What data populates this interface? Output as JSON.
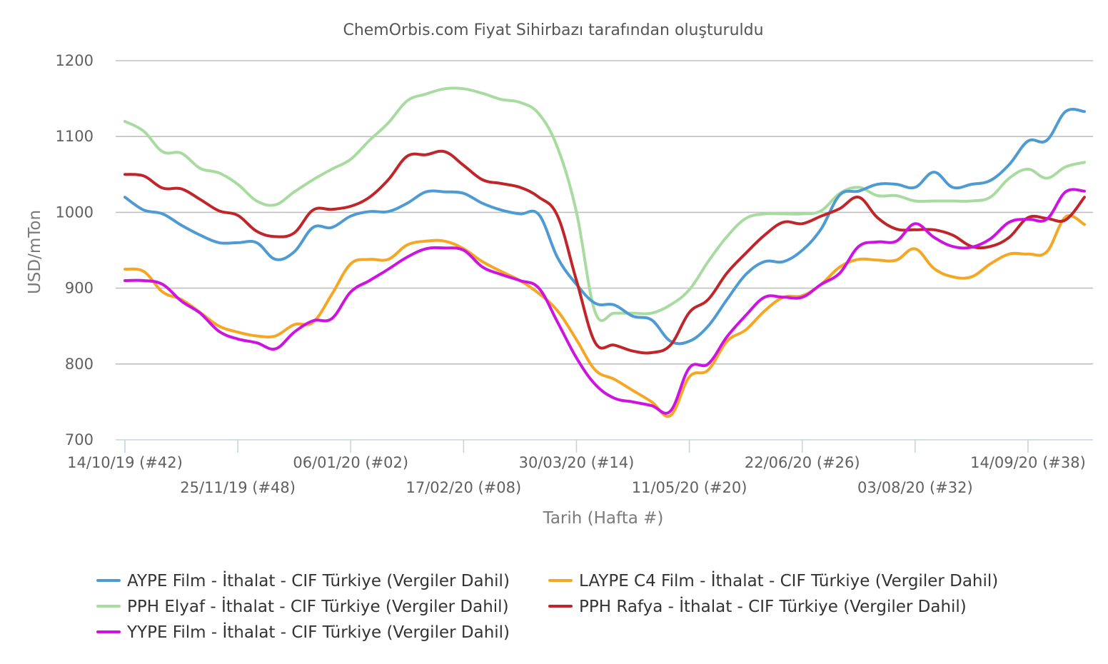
{
  "chart_data": {
    "type": "line",
    "title": "ChemOrbis.com Fiyat Sihirbazı tarafından oluşturuldu",
    "xlabel": "Tarih (Hafta #)",
    "ylabel": "USD/mTon",
    "ylim": [
      700,
      1200
    ],
    "yticks": [
      700,
      800,
      900,
      1000,
      1100,
      1200
    ],
    "grid": true,
    "legend_position": "bottom",
    "x_start": "14/10/19",
    "x_end": "21/09/20",
    "x_tick_labels": [
      {
        "date": "14/10/19",
        "label": "14/10/19 (#42)",
        "row": 1
      },
      {
        "date": "25/11/19",
        "label": "25/11/19 (#48)",
        "row": 2
      },
      {
        "date": "06/01/20",
        "label": "06/01/20 (#02)",
        "row": 1
      },
      {
        "date": "17/02/20",
        "label": "17/02/20 (#08)",
        "row": 2
      },
      {
        "date": "30/03/20",
        "label": "30/03/20 (#14)",
        "row": 1
      },
      {
        "date": "11/05/20",
        "label": "11/05/20 (#20)",
        "row": 2
      },
      {
        "date": "22/06/20",
        "label": "22/06/20 (#26)",
        "row": 1
      },
      {
        "date": "03/08/20",
        "label": "03/08/20 (#32)",
        "row": 2
      },
      {
        "date": "14/09/20",
        "label": "14/09/20 (#38)",
        "row": 1
      }
    ],
    "series": [
      {
        "name": "AYPE Film - İthalat - CIF Türkiye (Vergiler Dahil)",
        "color": "#4e9ad2",
        "points": [
          [
            "14/10/19",
            1020
          ],
          [
            "21/10/19",
            1003
          ],
          [
            "28/10/19",
            998
          ],
          [
            "04/11/19",
            983
          ],
          [
            "11/11/19",
            970
          ],
          [
            "18/11/19",
            960
          ],
          [
            "25/11/19",
            960
          ],
          [
            "02/12/19",
            960
          ],
          [
            "09/12/19",
            938
          ],
          [
            "16/12/19",
            948
          ],
          [
            "23/12/19",
            980
          ],
          [
            "30/12/19",
            980
          ],
          [
            "06/01/20",
            995
          ],
          [
            "13/01/20",
            1001
          ],
          [
            "20/01/20",
            1001
          ],
          [
            "27/01/20",
            1012
          ],
          [
            "03/02/20",
            1027
          ],
          [
            "10/02/20",
            1027
          ],
          [
            "17/02/20",
            1025
          ],
          [
            "24/02/20",
            1012
          ],
          [
            "02/03/20",
            1003
          ],
          [
            "09/03/20",
            998
          ],
          [
            "16/03/20",
            997
          ],
          [
            "23/03/20",
            940
          ],
          [
            "30/03/20",
            905
          ],
          [
            "06/04/20",
            880
          ],
          [
            "13/04/20",
            878
          ],
          [
            "20/04/20",
            863
          ],
          [
            "27/04/20",
            858
          ],
          [
            "04/05/20",
            830
          ],
          [
            "11/05/20",
            830
          ],
          [
            "18/05/20",
            850
          ],
          [
            "25/05/20",
            885
          ],
          [
            "01/06/20",
            918
          ],
          [
            "08/06/20",
            935
          ],
          [
            "15/06/20",
            935
          ],
          [
            "22/06/20",
            950
          ],
          [
            "29/06/20",
            978
          ],
          [
            "06/07/20",
            1023
          ],
          [
            "13/07/20",
            1028
          ],
          [
            "20/07/20",
            1037
          ],
          [
            "27/07/20",
            1037
          ],
          [
            "03/08/20",
            1033
          ],
          [
            "10/08/20",
            1053
          ],
          [
            "17/08/20",
            1033
          ],
          [
            "24/08/20",
            1037
          ],
          [
            "31/08/20",
            1042
          ],
          [
            "07/09/20",
            1063
          ],
          [
            "14/09/20",
            1094
          ],
          [
            "21/09/20",
            1095
          ],
          [
            "28/09/20",
            1133
          ],
          [
            "05/10/20",
            1133
          ]
        ]
      },
      {
        "name": "LAYPE C4 Film - İthalat - CIF Türkiye (Vergiler Dahil)",
        "color": "#f5a623",
        "points": [
          [
            "14/10/19",
            925
          ],
          [
            "21/10/19",
            922
          ],
          [
            "28/10/19",
            895
          ],
          [
            "04/11/19",
            885
          ],
          [
            "11/11/19",
            868
          ],
          [
            "18/11/19",
            850
          ],
          [
            "25/11/19",
            842
          ],
          [
            "02/12/19",
            837
          ],
          [
            "09/12/19",
            837
          ],
          [
            "16/12/19",
            852
          ],
          [
            "23/12/19",
            855
          ],
          [
            "30/12/19",
            892
          ],
          [
            "06/01/20",
            932
          ],
          [
            "13/01/20",
            938
          ],
          [
            "20/01/20",
            938
          ],
          [
            "27/01/20",
            957
          ],
          [
            "03/02/20",
            962
          ],
          [
            "10/02/20",
            962
          ],
          [
            "17/02/20",
            952
          ],
          [
            "24/02/20",
            935
          ],
          [
            "02/03/20",
            922
          ],
          [
            "09/03/20",
            910
          ],
          [
            "16/03/20",
            893
          ],
          [
            "23/03/20",
            870
          ],
          [
            "30/03/20",
            832
          ],
          [
            "06/04/20",
            792
          ],
          [
            "13/04/20",
            780
          ],
          [
            "20/04/20",
            765
          ],
          [
            "27/04/20",
            750
          ],
          [
            "04/05/20",
            732
          ],
          [
            "11/05/20",
            783
          ],
          [
            "18/05/20",
            792
          ],
          [
            "25/05/20",
            830
          ],
          [
            "01/06/20",
            845
          ],
          [
            "08/06/20",
            870
          ],
          [
            "15/06/20",
            888
          ],
          [
            "22/06/20",
            890
          ],
          [
            "29/06/20",
            905
          ],
          [
            "06/07/20",
            928
          ],
          [
            "13/07/20",
            938
          ],
          [
            "20/07/20",
            937
          ],
          [
            "27/07/20",
            937
          ],
          [
            "03/08/20",
            952
          ],
          [
            "10/08/20",
            926
          ],
          [
            "17/08/20",
            915
          ],
          [
            "24/08/20",
            915
          ],
          [
            "31/08/20",
            932
          ],
          [
            "07/09/20",
            945
          ],
          [
            "14/09/20",
            945
          ],
          [
            "21/09/20",
            948
          ],
          [
            "28/09/20",
            994
          ],
          [
            "05/10/20",
            984
          ]
        ]
      },
      {
        "name": "PPH Elyaf - İthalat - CIF Türkiye (Vergiler Dahil)",
        "color": "#a8dba0",
        "points": [
          [
            "14/10/19",
            1120
          ],
          [
            "21/10/19",
            1107
          ],
          [
            "28/10/19",
            1080
          ],
          [
            "04/11/19",
            1078
          ],
          [
            "11/11/19",
            1058
          ],
          [
            "18/11/19",
            1052
          ],
          [
            "25/11/19",
            1037
          ],
          [
            "02/12/19",
            1015
          ],
          [
            "09/12/19",
            1010
          ],
          [
            "16/12/19",
            1027
          ],
          [
            "23/12/19",
            1043
          ],
          [
            "30/12/19",
            1057
          ],
          [
            "06/01/20",
            1070
          ],
          [
            "13/01/20",
            1095
          ],
          [
            "20/01/20",
            1118
          ],
          [
            "27/01/20",
            1147
          ],
          [
            "03/02/20",
            1156
          ],
          [
            "10/02/20",
            1163
          ],
          [
            "17/02/20",
            1163
          ],
          [
            "24/02/20",
            1157
          ],
          [
            "02/03/20",
            1149
          ],
          [
            "09/03/20",
            1145
          ],
          [
            "16/03/20",
            1130
          ],
          [
            "23/03/20",
            1085
          ],
          [
            "30/03/20",
            1000
          ],
          [
            "06/04/20",
            868
          ],
          [
            "13/04/20",
            867
          ],
          [
            "20/04/20",
            867
          ],
          [
            "27/04/20",
            867
          ],
          [
            "04/05/20",
            878
          ],
          [
            "11/05/20",
            898
          ],
          [
            "18/05/20",
            935
          ],
          [
            "25/05/20",
            968
          ],
          [
            "01/06/20",
            992
          ],
          [
            "08/06/20",
            998
          ],
          [
            "15/06/20",
            998
          ],
          [
            "22/06/20",
            998
          ],
          [
            "29/06/20",
            1002
          ],
          [
            "06/07/20",
            1025
          ],
          [
            "13/07/20",
            1033
          ],
          [
            "20/07/20",
            1022
          ],
          [
            "27/07/20",
            1022
          ],
          [
            "03/08/20",
            1015
          ],
          [
            "10/08/20",
            1015
          ],
          [
            "17/08/20",
            1015
          ],
          [
            "24/08/20",
            1015
          ],
          [
            "31/08/20",
            1020
          ],
          [
            "07/09/20",
            1045
          ],
          [
            "14/09/20",
            1057
          ],
          [
            "21/09/20",
            1045
          ],
          [
            "28/09/20",
            1060
          ],
          [
            "05/10/20",
            1066
          ]
        ]
      },
      {
        "name": "PPH Rafya - İthalat - CIF Türkiye (Vergiler Dahil)",
        "color": "#c0252a",
        "points": [
          [
            "14/10/19",
            1050
          ],
          [
            "21/10/19",
            1048
          ],
          [
            "28/10/19",
            1032
          ],
          [
            "04/11/19",
            1031
          ],
          [
            "11/11/19",
            1017
          ],
          [
            "18/11/19",
            1002
          ],
          [
            "25/11/19",
            996
          ],
          [
            "02/12/19",
            975
          ],
          [
            "09/12/19",
            968
          ],
          [
            "16/12/19",
            973
          ],
          [
            "23/12/19",
            1003
          ],
          [
            "30/12/19",
            1004
          ],
          [
            "06/01/20",
            1008
          ],
          [
            "13/01/20",
            1020
          ],
          [
            "20/01/20",
            1043
          ],
          [
            "27/01/20",
            1074
          ],
          [
            "03/02/20",
            1076
          ],
          [
            "10/02/20",
            1080
          ],
          [
            "17/02/20",
            1062
          ],
          [
            "24/02/20",
            1043
          ],
          [
            "02/03/20",
            1038
          ],
          [
            "09/03/20",
            1033
          ],
          [
            "16/03/20",
            1020
          ],
          [
            "23/03/20",
            995
          ],
          [
            "30/03/20",
            910
          ],
          [
            "06/04/20",
            828
          ],
          [
            "13/04/20",
            825
          ],
          [
            "20/04/20",
            817
          ],
          [
            "27/04/20",
            815
          ],
          [
            "04/05/20",
            825
          ],
          [
            "11/05/20",
            868
          ],
          [
            "18/05/20",
            885
          ],
          [
            "25/05/20",
            920
          ],
          [
            "01/06/20",
            946
          ],
          [
            "08/06/20",
            970
          ],
          [
            "15/06/20",
            987
          ],
          [
            "22/06/20",
            985
          ],
          [
            "29/06/20",
            995
          ],
          [
            "06/07/20",
            1005
          ],
          [
            "13/07/20",
            1020
          ],
          [
            "20/07/20",
            993
          ],
          [
            "27/07/20",
            978
          ],
          [
            "03/08/20",
            977
          ],
          [
            "10/08/20",
            977
          ],
          [
            "17/08/20",
            970
          ],
          [
            "24/08/20",
            955
          ],
          [
            "31/08/20",
            955
          ],
          [
            "07/09/20",
            967
          ],
          [
            "14/09/20",
            993
          ],
          [
            "21/09/20",
            992
          ],
          [
            "28/09/20",
            990
          ],
          [
            "05/10/20",
            1020
          ]
        ]
      },
      {
        "name": "YYPE Film - İthalat - CIF Türkiye (Vergiler Dahil)",
        "color": "#cc13e0",
        "points": [
          [
            "14/10/19",
            910
          ],
          [
            "21/10/19",
            910
          ],
          [
            "28/10/19",
            905
          ],
          [
            "04/11/19",
            883
          ],
          [
            "11/11/19",
            867
          ],
          [
            "18/11/19",
            843
          ],
          [
            "25/11/19",
            833
          ],
          [
            "02/12/19",
            828
          ],
          [
            "09/12/19",
            820
          ],
          [
            "16/12/19",
            842
          ],
          [
            "23/12/19",
            857
          ],
          [
            "30/12/19",
            860
          ],
          [
            "06/01/20",
            895
          ],
          [
            "13/01/20",
            910
          ],
          [
            "20/01/20",
            925
          ],
          [
            "27/01/20",
            941
          ],
          [
            "03/02/20",
            952
          ],
          [
            "10/02/20",
            953
          ],
          [
            "17/02/20",
            950
          ],
          [
            "24/02/20",
            928
          ],
          [
            "02/03/20",
            918
          ],
          [
            "09/03/20",
            910
          ],
          [
            "16/03/20",
            900
          ],
          [
            "23/03/20",
            855
          ],
          [
            "30/03/20",
            808
          ],
          [
            "06/04/20",
            773
          ],
          [
            "13/04/20",
            755
          ],
          [
            "20/04/20",
            750
          ],
          [
            "27/04/20",
            745
          ],
          [
            "04/05/20",
            738
          ],
          [
            "11/05/20",
            795
          ],
          [
            "18/05/20",
            800
          ],
          [
            "25/05/20",
            836
          ],
          [
            "01/06/20",
            864
          ],
          [
            "08/06/20",
            888
          ],
          [
            "15/06/20",
            888
          ],
          [
            "22/06/20",
            888
          ],
          [
            "29/06/20",
            905
          ],
          [
            "06/07/20",
            920
          ],
          [
            "13/07/20",
            955
          ],
          [
            "20/07/20",
            961
          ],
          [
            "27/07/20",
            962
          ],
          [
            "03/08/20",
            985
          ],
          [
            "10/08/20",
            967
          ],
          [
            "17/08/20",
            955
          ],
          [
            "24/08/20",
            954
          ],
          [
            "31/08/20",
            965
          ],
          [
            "07/09/20",
            987
          ],
          [
            "14/09/20",
            991
          ],
          [
            "21/09/20",
            991
          ],
          [
            "28/09/20",
            1027
          ],
          [
            "05/10/20",
            1028
          ]
        ]
      }
    ]
  }
}
